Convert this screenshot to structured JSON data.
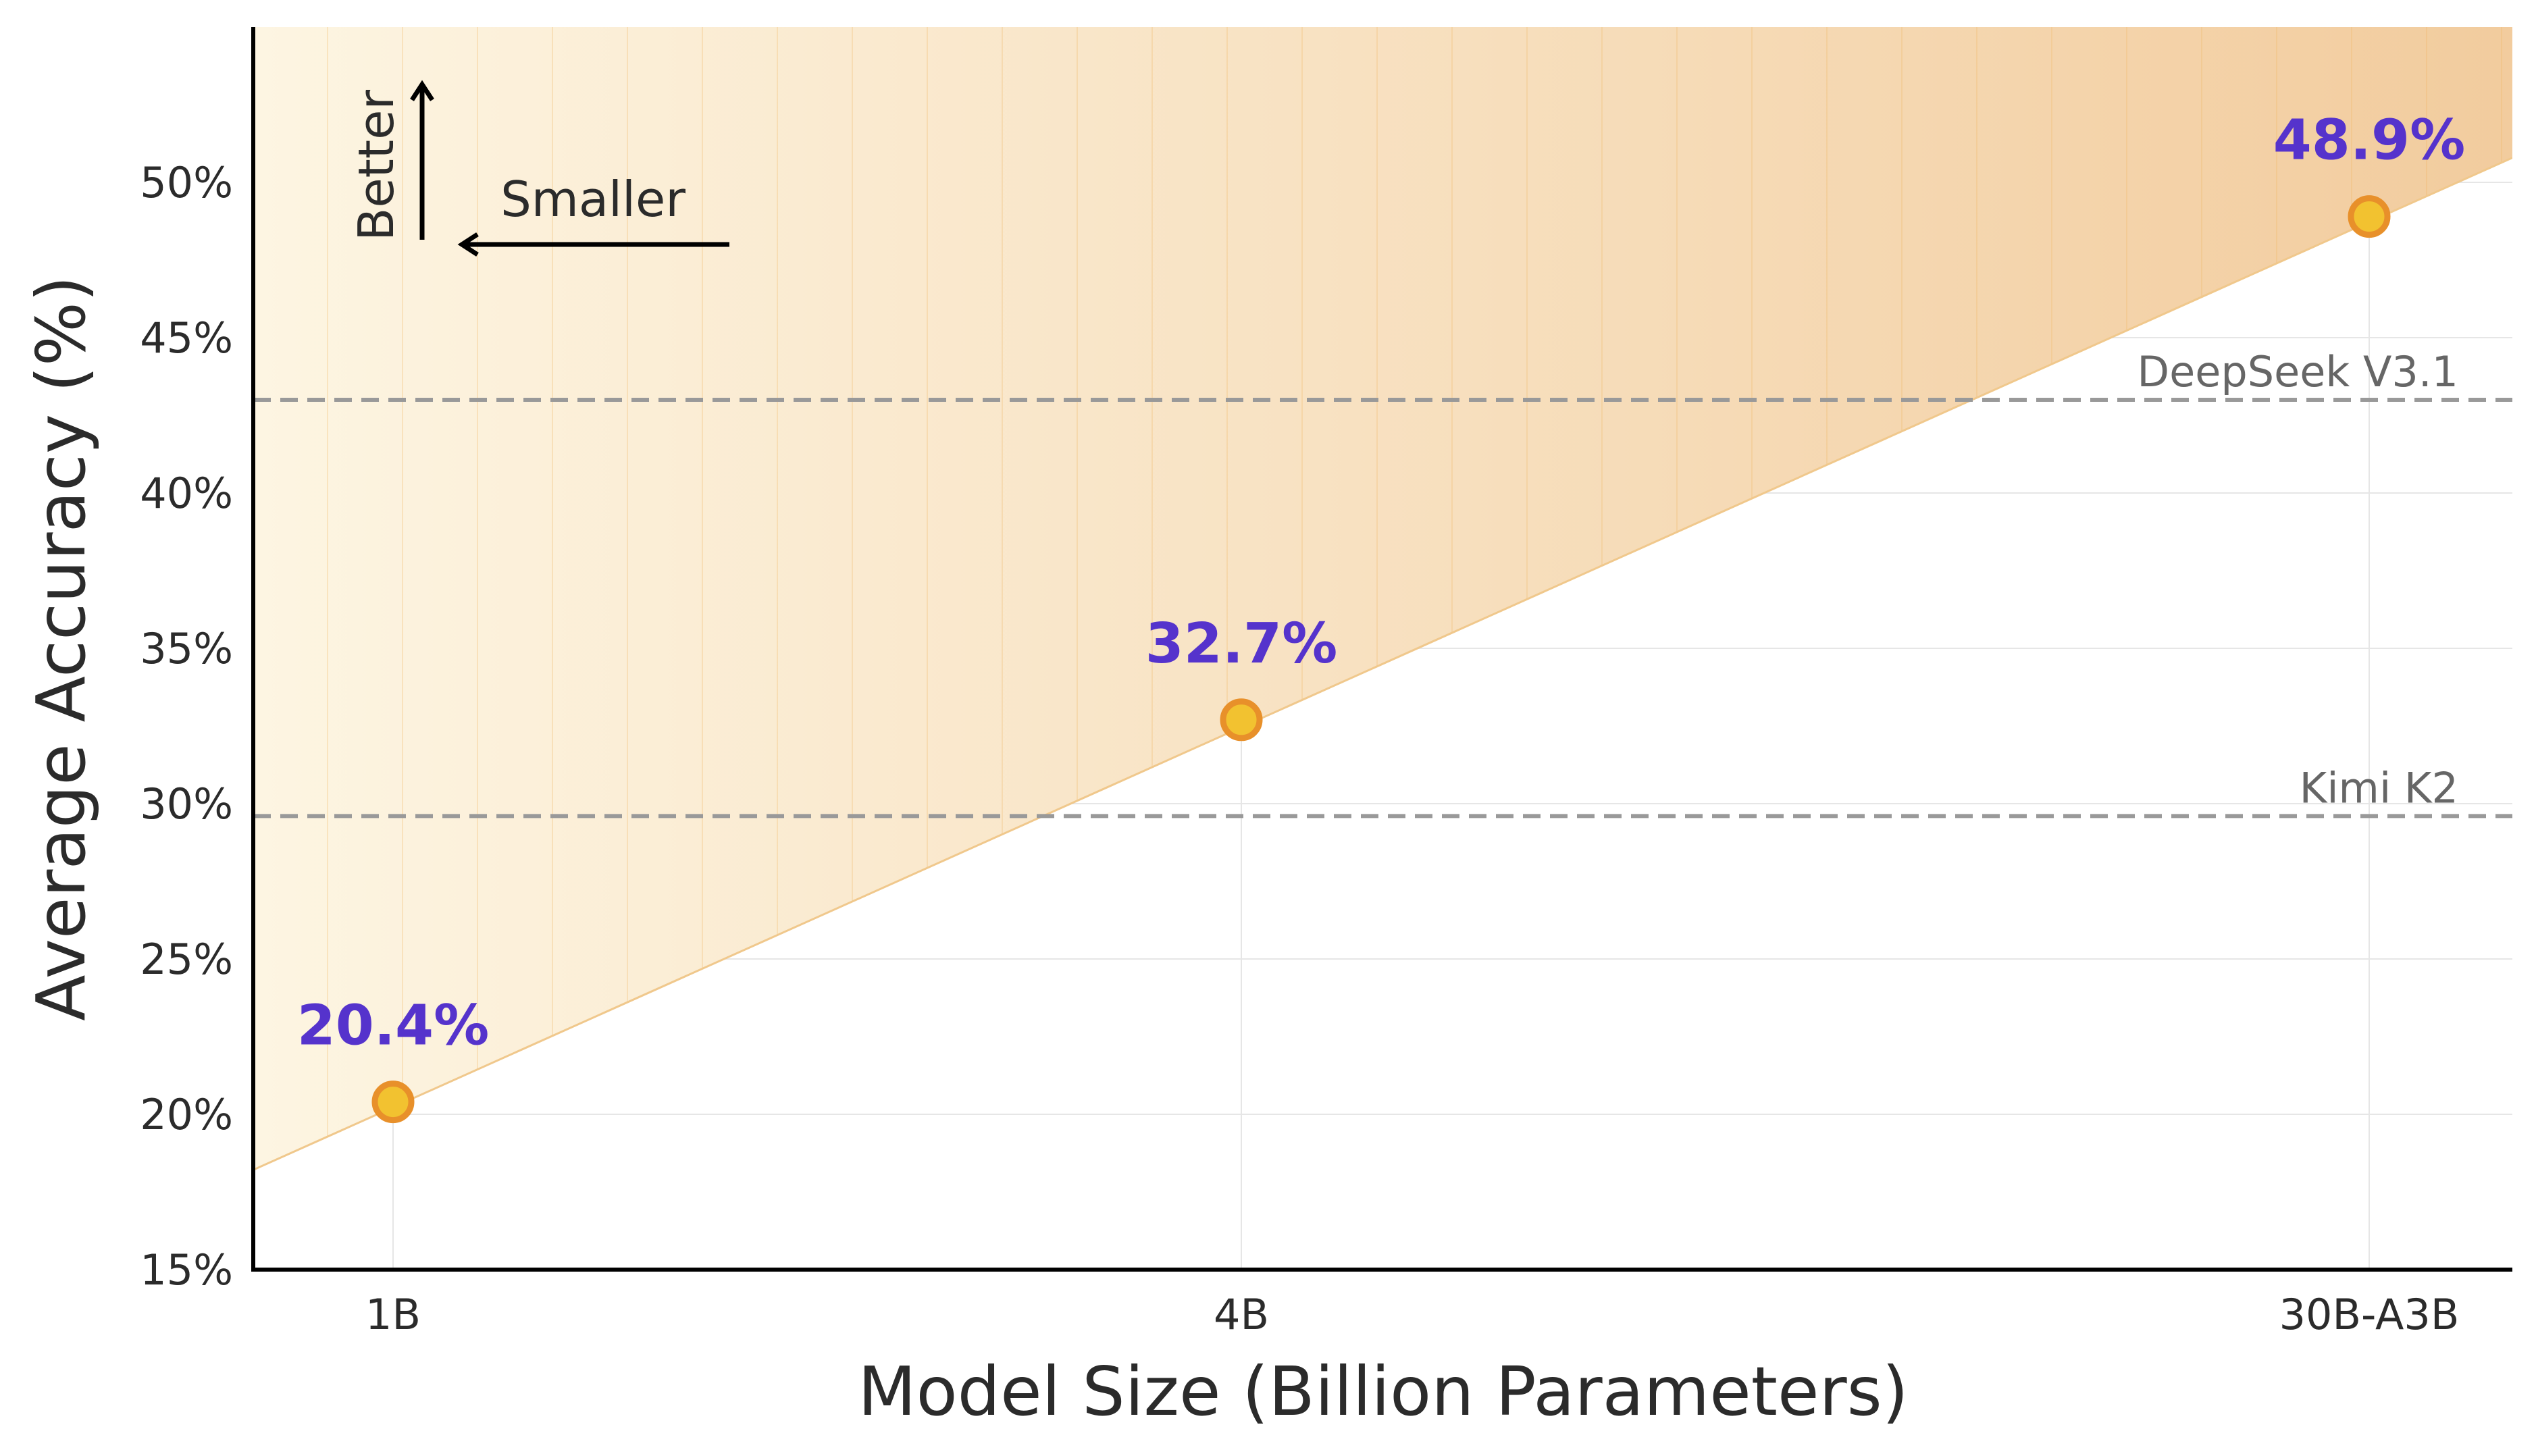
{
  "chart_data": {
    "type": "scatter",
    "title": "",
    "xlabel": "Model Size (Billion Parameters)",
    "ylabel": "Average Accuracy (%)",
    "categories": [
      "1B",
      "4B",
      "30B-A3B"
    ],
    "ylim": [
      15,
      55
    ],
    "yticks": [
      15,
      20,
      25,
      30,
      35,
      40,
      45,
      50
    ],
    "ytick_labels": [
      "15%",
      "20%",
      "25%",
      "30%",
      "35%",
      "40%",
      "45%",
      "50%"
    ],
    "series": [
      {
        "values": [
          20.4,
          32.7,
          48.9
        ],
        "labels": [
          "20.4%",
          "32.7%",
          "48.9%"
        ]
      }
    ],
    "reference_lines": [
      {
        "label": "DeepSeek V3.1",
        "value": 43.0
      },
      {
        "label": "Kimi K2",
        "value": 29.6
      }
    ],
    "annotations": {
      "up_arrow_label": "Better",
      "left_arrow_label": "Smaller"
    },
    "grid": true,
    "colors": {
      "marker_fill": "#f2c230",
      "marker_edge": "#e8902a",
      "data_label": "#5533cc",
      "reference_line": "#999999",
      "shade_light": "#fdf5e2",
      "shade_dark": "#f2cc9e"
    }
  }
}
